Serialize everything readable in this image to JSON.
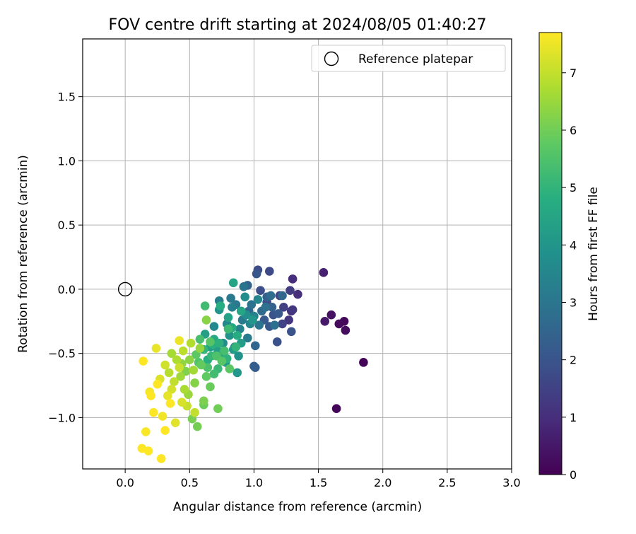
{
  "chart_data": {
    "type": "scatter",
    "title": "FOV centre drift starting at 2024/08/05 01:40:27",
    "xlabel": "Angular distance from reference (arcmin)",
    "ylabel": "Rotation from reference (arcmin)",
    "xlim": [
      -0.33,
      3.0
    ],
    "ylim": [
      -1.4,
      1.95
    ],
    "xticks": [
      0.0,
      0.5,
      1.0,
      1.5,
      2.0,
      2.5,
      3.0
    ],
    "xtick_labels": [
      "0.0",
      "0.5",
      "1.0",
      "1.5",
      "2.0",
      "2.5",
      "3.0"
    ],
    "yticks": [
      -1.0,
      -0.5,
      0.0,
      0.5,
      1.0,
      1.5
    ],
    "ytick_labels": [
      "−1.0",
      "−0.5",
      "0.0",
      "0.5",
      "1.0",
      "1.5"
    ],
    "grid": true,
    "legend": {
      "position": "top-right",
      "entries": [
        "Reference platepar"
      ]
    },
    "reference_point": {
      "x": 0.0,
      "y": 0.0
    },
    "colorbar": {
      "label": "Hours from first FF file",
      "colormap": "viridis",
      "range": [
        0,
        7.7
      ],
      "ticks": [
        0,
        1,
        2,
        3,
        4,
        5,
        6,
        7
      ],
      "tick_labels": [
        "0",
        "1",
        "2",
        "3",
        "4",
        "5",
        "6",
        "7"
      ]
    },
    "point_fields": [
      "x",
      "y",
      "hours"
    ],
    "points": [
      [
        1.85,
        -0.57,
        0.05
      ],
      [
        1.64,
        -0.93,
        0.1
      ],
      [
        1.7,
        -0.25,
        0.15
      ],
      [
        1.66,
        -0.27,
        0.2
      ],
      [
        1.71,
        -0.32,
        0.25
      ],
      [
        1.6,
        -0.2,
        0.35
      ],
      [
        1.55,
        -0.25,
        0.5
      ],
      [
        1.54,
        0.13,
        0.7
      ],
      [
        1.3,
        0.08,
        1.0
      ],
      [
        1.34,
        -0.04,
        1.05
      ],
      [
        1.29,
        -0.17,
        1.1
      ],
      [
        1.27,
        -0.24,
        1.2
      ],
      [
        1.3,
        -0.16,
        1.25
      ],
      [
        1.28,
        -0.01,
        1.35
      ],
      [
        1.23,
        -0.14,
        1.45
      ],
      [
        1.22,
        -0.27,
        1.55
      ],
      [
        1.2,
        -0.05,
        1.6
      ],
      [
        1.12,
        0.14,
        1.7
      ],
      [
        1.03,
        0.15,
        1.75
      ],
      [
        1.1,
        -0.1,
        1.8
      ],
      [
        1.05,
        -0.01,
        1.85
      ],
      [
        1.18,
        -0.41,
        1.9
      ],
      [
        1.29,
        -0.33,
        1.95
      ],
      [
        1.15,
        -0.2,
        2.0
      ],
      [
        1.02,
        0.12,
        2.05
      ],
      [
        1.12,
        -0.29,
        2.1
      ],
      [
        1.19,
        -0.19,
        2.15
      ],
      [
        1.08,
        -0.24,
        2.2
      ],
      [
        1.01,
        -0.61,
        2.25
      ],
      [
        1.0,
        -0.6,
        2.3
      ],
      [
        1.1,
        -0.06,
        2.35
      ],
      [
        1.14,
        -0.14,
        2.4
      ],
      [
        0.95,
        0.03,
        2.45
      ],
      [
        1.01,
        -0.44,
        2.5
      ],
      [
        1.22,
        -0.05,
        2.55
      ],
      [
        0.96,
        -0.17,
        2.6
      ],
      [
        1.06,
        -0.17,
        2.65
      ],
      [
        1.13,
        -0.05,
        2.7
      ],
      [
        1.16,
        -0.28,
        2.8
      ],
      [
        1.09,
        -0.14,
        2.85
      ],
      [
        0.98,
        -0.12,
        2.9
      ],
      [
        0.92,
        0.02,
        2.95
      ],
      [
        1.04,
        -0.28,
        3.0
      ],
      [
        0.86,
        -0.12,
        3.05
      ],
      [
        0.82,
        -0.07,
        3.1
      ],
      [
        0.91,
        -0.24,
        3.15
      ],
      [
        0.95,
        -0.38,
        3.2
      ],
      [
        0.73,
        -0.09,
        3.25
      ],
      [
        0.83,
        -0.14,
        3.3
      ],
      [
        1.0,
        -0.21,
        3.35
      ],
      [
        0.89,
        -0.31,
        3.4
      ],
      [
        0.97,
        -0.27,
        3.45
      ],
      [
        1.03,
        -0.08,
        3.5
      ],
      [
        0.79,
        -0.27,
        3.55
      ],
      [
        0.69,
        -0.29,
        3.6
      ],
      [
        0.85,
        -0.45,
        3.65
      ],
      [
        0.93,
        -0.06,
        3.7
      ],
      [
        0.76,
        -0.42,
        3.75
      ],
      [
        0.94,
        -0.2,
        3.8
      ],
      [
        0.88,
        -0.52,
        3.85
      ],
      [
        0.81,
        -0.36,
        3.9
      ],
      [
        0.73,
        -0.16,
        3.95
      ],
      [
        0.99,
        -0.24,
        4.0
      ],
      [
        0.87,
        -0.65,
        4.05
      ],
      [
        0.84,
        -0.47,
        4.1
      ],
      [
        0.78,
        -0.57,
        4.15
      ],
      [
        0.9,
        -0.42,
        4.2
      ],
      [
        0.66,
        -0.45,
        4.25
      ],
      [
        0.72,
        -0.48,
        4.3
      ],
      [
        0.62,
        -0.35,
        4.35
      ],
      [
        0.8,
        -0.22,
        4.4
      ],
      [
        0.84,
        0.05,
        4.45
      ],
      [
        0.9,
        -0.17,
        4.5
      ],
      [
        0.76,
        -0.5,
        4.55
      ],
      [
        0.69,
        -0.39,
        4.6
      ],
      [
        0.83,
        -0.3,
        4.65
      ],
      [
        0.87,
        -0.36,
        4.7
      ],
      [
        0.74,
        -0.13,
        4.75
      ],
      [
        0.64,
        -0.55,
        4.8
      ],
      [
        0.68,
        -0.43,
        4.85
      ],
      [
        0.73,
        -0.42,
        4.9
      ],
      [
        0.79,
        -0.54,
        4.95
      ],
      [
        0.86,
        -0.45,
        5.0
      ],
      [
        0.61,
        -0.47,
        5.05
      ],
      [
        0.67,
        -0.52,
        5.1
      ],
      [
        0.72,
        -0.62,
        5.15
      ],
      [
        0.8,
        -0.31,
        5.2
      ],
      [
        0.62,
        -0.13,
        5.25
      ],
      [
        0.69,
        -0.66,
        5.3
      ],
      [
        0.77,
        -0.48,
        5.35
      ],
      [
        0.58,
        -0.39,
        5.4
      ],
      [
        0.64,
        -0.61,
        5.45
      ],
      [
        0.71,
        -0.52,
        5.5
      ],
      [
        0.57,
        -0.57,
        5.55
      ],
      [
        0.66,
        -0.41,
        5.6
      ],
      [
        0.75,
        -0.56,
        5.65
      ],
      [
        0.81,
        -0.62,
        5.7
      ],
      [
        0.55,
        -0.51,
        5.75
      ],
      [
        0.63,
        -0.68,
        5.8
      ],
      [
        0.59,
        -0.59,
        5.85
      ],
      [
        0.66,
        -0.76,
        5.9
      ],
      [
        0.61,
        -0.9,
        5.95
      ],
      [
        0.72,
        -0.93,
        6.0
      ],
      [
        0.56,
        -1.07,
        6.05
      ],
      [
        0.52,
        -1.01,
        6.1
      ],
      [
        0.61,
        -0.87,
        6.15
      ],
      [
        0.47,
        -0.64,
        6.2
      ],
      [
        0.54,
        -0.73,
        6.25
      ],
      [
        0.63,
        -0.24,
        6.3
      ],
      [
        0.5,
        -0.55,
        6.35
      ],
      [
        0.44,
        -0.58,
        6.4
      ],
      [
        0.58,
        -0.46,
        6.45
      ],
      [
        0.49,
        -0.82,
        6.5
      ],
      [
        0.43,
        -0.68,
        6.55
      ],
      [
        0.53,
        -0.63,
        6.6
      ],
      [
        0.36,
        -0.5,
        6.65
      ],
      [
        0.46,
        -0.78,
        6.7
      ],
      [
        0.4,
        -0.55,
        6.75
      ],
      [
        0.51,
        -0.42,
        6.8
      ],
      [
        0.34,
        -0.65,
        6.85
      ],
      [
        0.45,
        -0.48,
        6.9
      ],
      [
        0.38,
        -0.72,
        6.95
      ],
      [
        0.54,
        -0.96,
        7.0
      ],
      [
        0.48,
        -0.91,
        7.05
      ],
      [
        0.42,
        -0.61,
        7.1
      ],
      [
        0.31,
        -0.59,
        7.15
      ],
      [
        0.36,
        -0.78,
        7.2
      ],
      [
        0.44,
        -0.88,
        7.25
      ],
      [
        0.27,
        -0.7,
        7.3
      ],
      [
        0.39,
        -1.04,
        7.35
      ],
      [
        0.33,
        -0.83,
        7.4
      ],
      [
        0.24,
        -0.46,
        7.45
      ],
      [
        0.42,
        -0.4,
        7.5
      ],
      [
        0.29,
        -0.99,
        7.55
      ],
      [
        0.19,
        -0.8,
        7.6
      ],
      [
        0.16,
        -1.11,
        7.65
      ],
      [
        0.13,
        -1.24,
        7.7
      ],
      [
        0.28,
        -1.32,
        7.7
      ],
      [
        0.18,
        -1.26,
        7.7
      ],
      [
        0.14,
        -0.56,
        7.7
      ],
      [
        0.22,
        -0.96,
        7.7
      ],
      [
        0.31,
        -1.1,
        7.7
      ],
      [
        0.25,
        -0.74,
        7.7
      ],
      [
        0.35,
        -0.89,
        7.7
      ],
      [
        0.2,
        -0.83,
        7.7
      ]
    ]
  }
}
